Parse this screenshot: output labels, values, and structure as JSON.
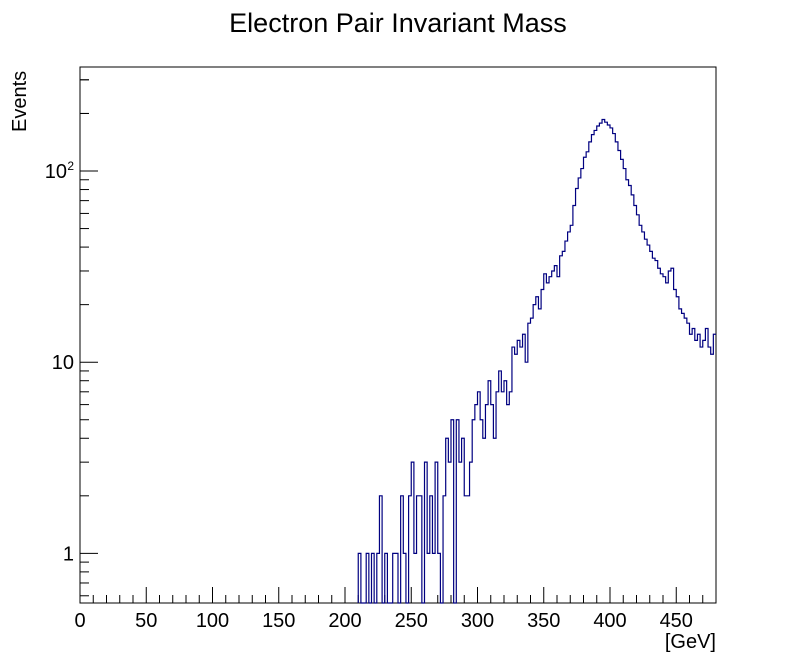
{
  "chart_data": {
    "type": "histogram",
    "title": "Electron Pair Invariant Mass",
    "xlabel": "[GeV]",
    "ylabel": "Events",
    "xlim": [
      0,
      480
    ],
    "ylim": [
      0.55,
      350
    ],
    "yscale": "log",
    "grid": false,
    "legend": "none",
    "line_color": "#000080",
    "x_ticks": [
      {
        "value": 0,
        "label": "0"
      },
      {
        "value": 50,
        "label": "50"
      },
      {
        "value": 100,
        "label": "100"
      },
      {
        "value": 150,
        "label": "150"
      },
      {
        "value": 200,
        "label": "200"
      },
      {
        "value": 250,
        "label": "250"
      },
      {
        "value": 300,
        "label": "300"
      },
      {
        "value": 350,
        "label": "350"
      },
      {
        "value": 400,
        "label": "400"
      },
      {
        "value": 450,
        "label": "450"
      }
    ],
    "y_ticks": [
      {
        "value": 1,
        "label": "1",
        "exp": ""
      },
      {
        "value": 10,
        "label": "10",
        "exp": ""
      },
      {
        "value": 100,
        "label": "10",
        "exp": "2"
      }
    ],
    "bin_width": 2,
    "x": [
      210,
      212,
      214,
      216,
      218,
      220,
      222,
      224,
      226,
      228,
      230,
      232,
      234,
      236,
      238,
      240,
      242,
      244,
      246,
      248,
      250,
      252,
      254,
      256,
      258,
      260,
      262,
      264,
      266,
      268,
      270,
      272,
      274,
      276,
      278,
      280,
      282,
      284,
      286,
      288,
      290,
      292,
      294,
      296,
      298,
      300,
      302,
      304,
      306,
      308,
      310,
      312,
      314,
      316,
      318,
      320,
      322,
      324,
      326,
      328,
      330,
      332,
      334,
      336,
      338,
      340,
      342,
      344,
      346,
      348,
      350,
      352,
      354,
      356,
      358,
      360,
      362,
      364,
      366,
      368,
      370,
      372,
      374,
      376,
      378,
      380,
      382,
      384,
      386,
      388,
      390,
      392,
      394,
      396,
      398,
      400,
      402,
      404,
      406,
      408,
      410,
      412,
      414,
      416,
      418,
      420,
      422,
      424,
      426,
      428,
      430,
      432,
      434,
      436,
      438,
      440,
      442,
      444,
      446,
      448,
      450,
      452,
      454,
      456,
      458,
      460,
      462,
      464,
      466,
      468,
      470,
      472,
      474,
      476,
      478
    ],
    "values": [
      1,
      0,
      0,
      1,
      0,
      1,
      0,
      1,
      2,
      0,
      1,
      0,
      0,
      1,
      1,
      0,
      2,
      1,
      0,
      2,
      3,
      1,
      2,
      2,
      0,
      3,
      1,
      2,
      1,
      3,
      1,
      0,
      2,
      4,
      3,
      5,
      0,
      5,
      3,
      4,
      2,
      2,
      3,
      5,
      6,
      7,
      5,
      4,
      6,
      8,
      6,
      4,
      7,
      9,
      7,
      8,
      6,
      7,
      12,
      11,
      13,
      12,
      14,
      10,
      16,
      17,
      20,
      22,
      19,
      24,
      29,
      26,
      28,
      30,
      32,
      28,
      36,
      38,
      43,
      48,
      52,
      66,
      81,
      92,
      103,
      118,
      126,
      142,
      155,
      163,
      172,
      178,
      186,
      180,
      174,
      168,
      157,
      142,
      128,
      115,
      103,
      90,
      84,
      75,
      66,
      59,
      52,
      48,
      44,
      41,
      38,
      35,
      34,
      31,
      29,
      28,
      26,
      30,
      31,
      24,
      22,
      19,
      18,
      17,
      16,
      14,
      15,
      13,
      14,
      12,
      13,
      15,
      12,
      11,
      14
    ]
  }
}
